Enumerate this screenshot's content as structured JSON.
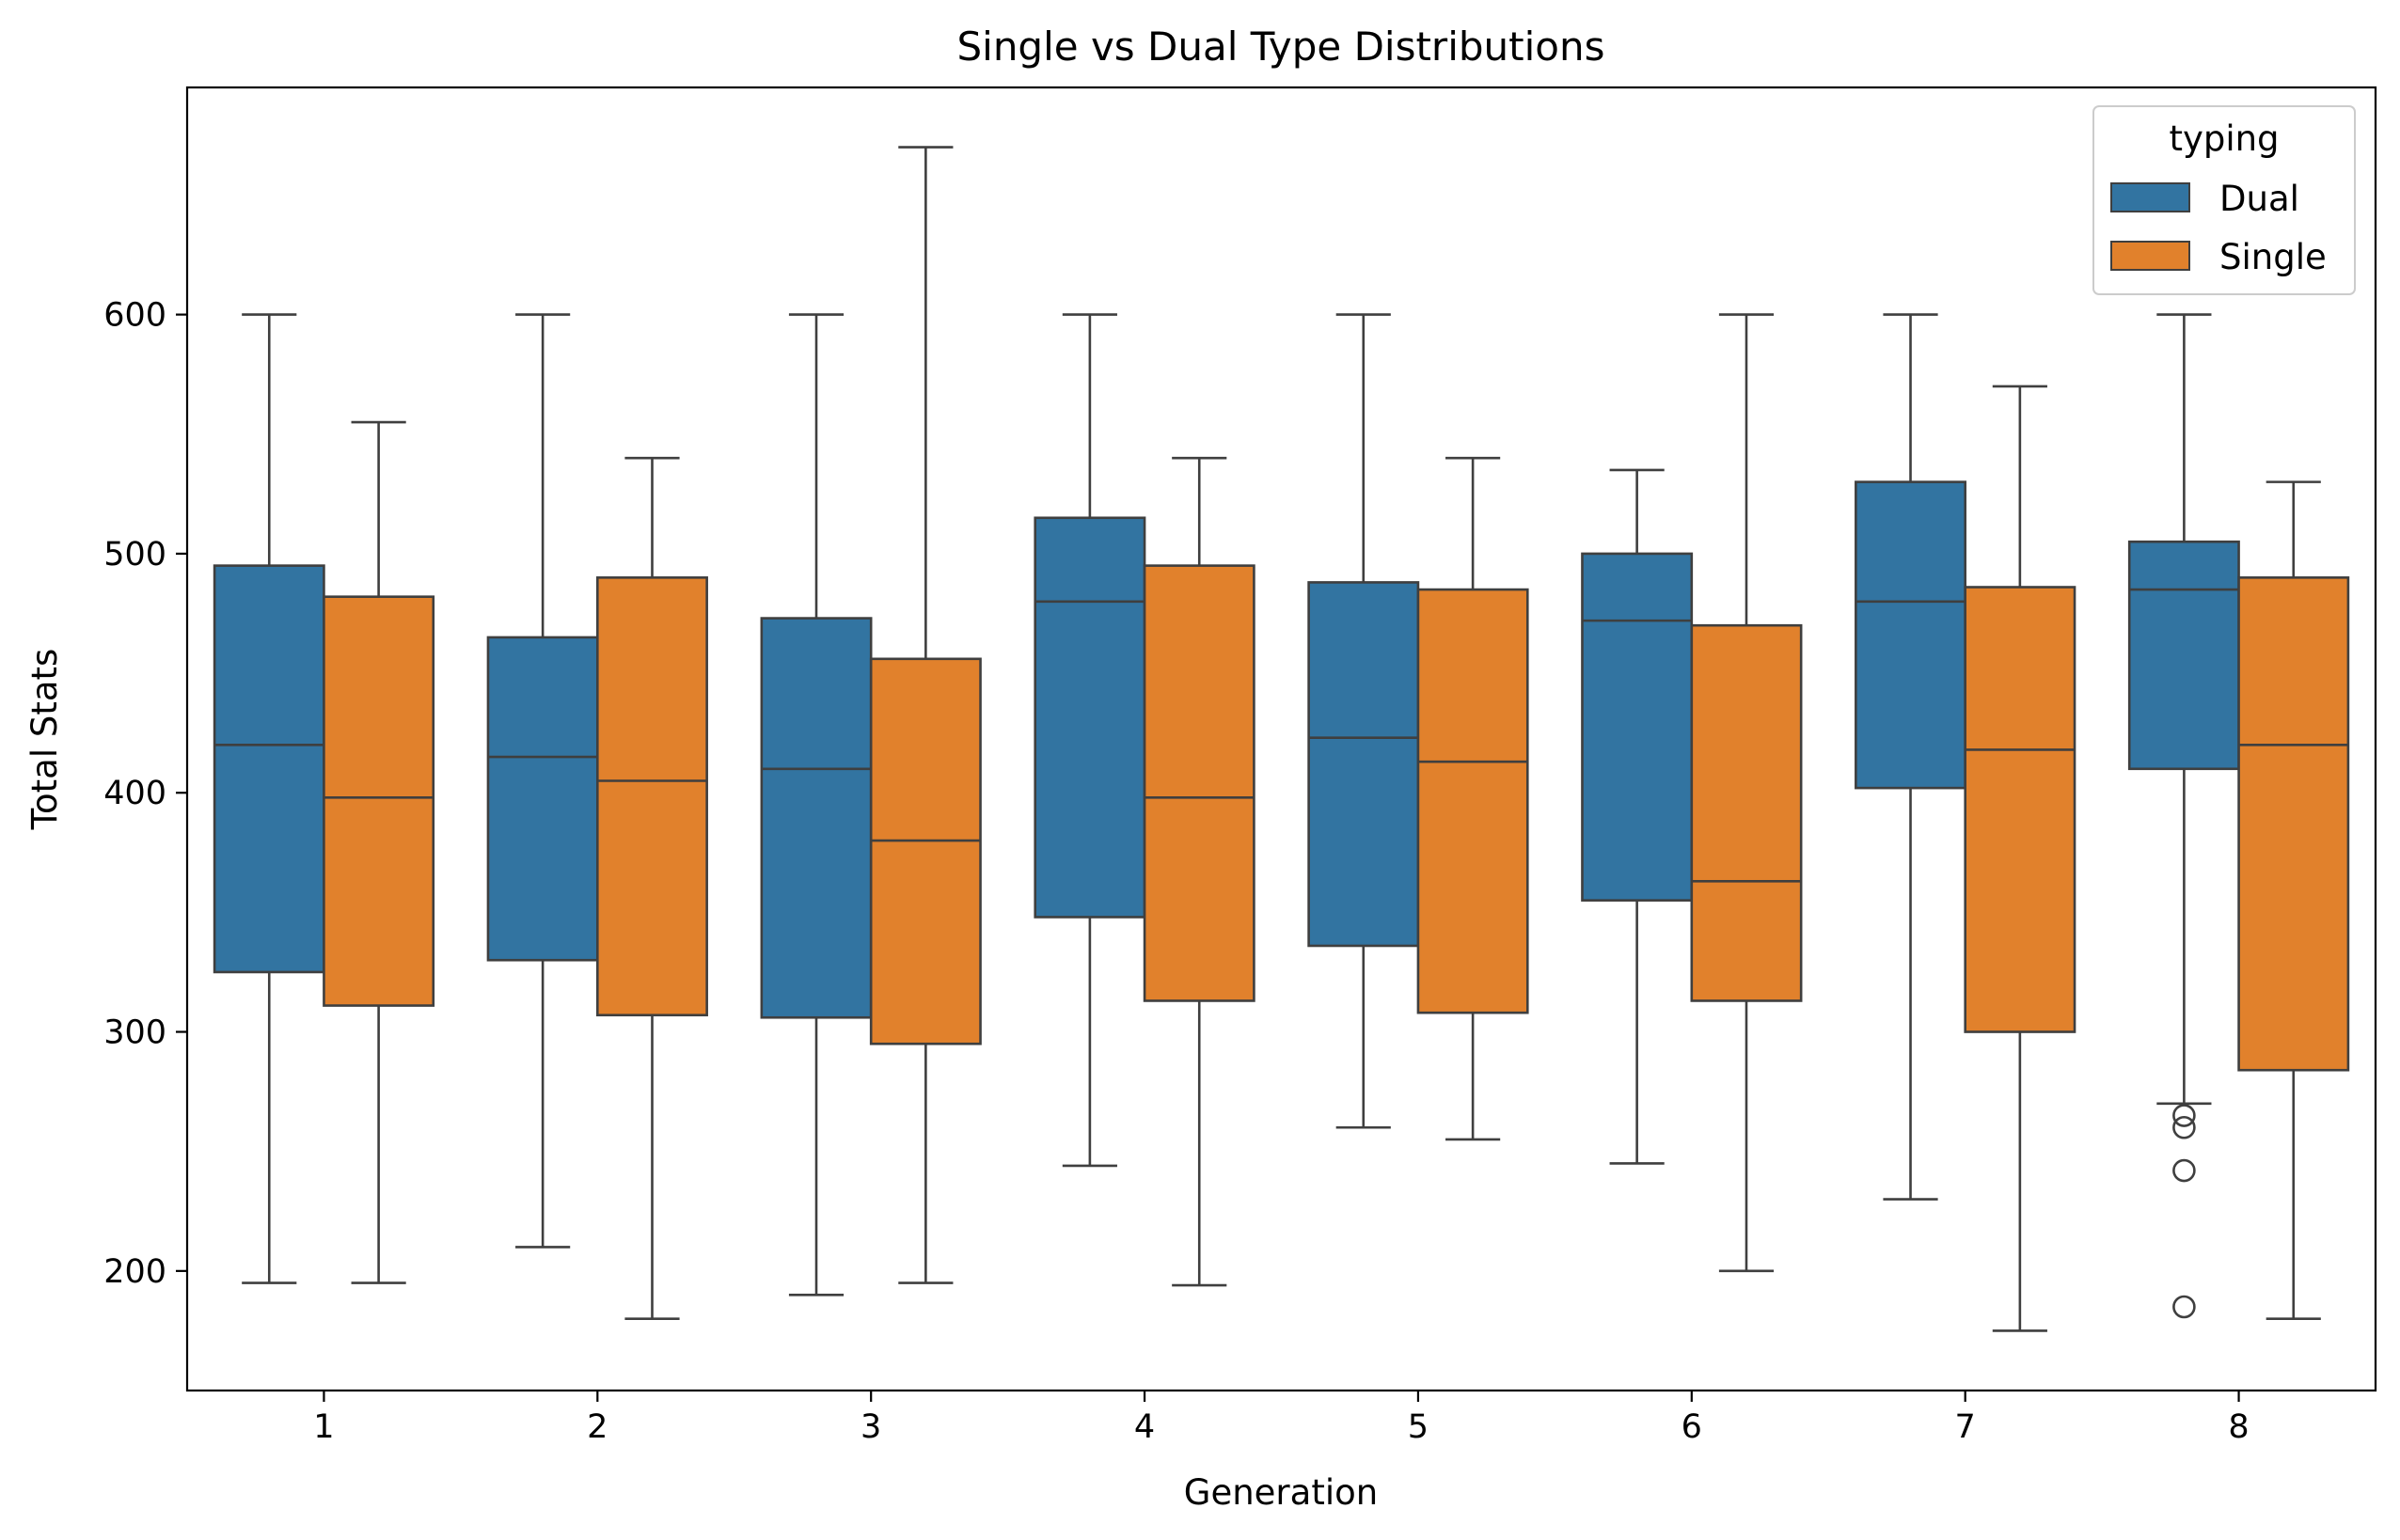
{
  "chart_data": {
    "type": "box",
    "title": "Single vs Dual Type Distributions",
    "xlabel": "Generation",
    "ylabel": "Total Stats",
    "categories": [
      "1",
      "2",
      "3",
      "4",
      "5",
      "6",
      "7",
      "8"
    ],
    "yticks": [
      200,
      300,
      400,
      500,
      600
    ],
    "ylim": [
      150,
      695
    ],
    "grid": false,
    "legend": {
      "title": "typing",
      "position": "top-right"
    },
    "series": [
      {
        "name": "Dual",
        "color": "#3274a1",
        "boxes": [
          {
            "whisker_low": 195,
            "q1": 325,
            "median": 420,
            "q3": 495,
            "whisker_high": 600,
            "outliers": []
          },
          {
            "whisker_low": 210,
            "q1": 330,
            "median": 415,
            "q3": 465,
            "whisker_high": 600,
            "outliers": []
          },
          {
            "whisker_low": 190,
            "q1": 306,
            "median": 410,
            "q3": 473,
            "whisker_high": 600,
            "outliers": []
          },
          {
            "whisker_low": 244,
            "q1": 348,
            "median": 480,
            "q3": 515,
            "whisker_high": 600,
            "outliers": []
          },
          {
            "whisker_low": 260,
            "q1": 336,
            "median": 423,
            "q3": 488,
            "whisker_high": 600,
            "outliers": []
          },
          {
            "whisker_low": 245,
            "q1": 355,
            "median": 472,
            "q3": 500,
            "whisker_high": 535,
            "outliers": []
          },
          {
            "whisker_low": 230,
            "q1": 402,
            "median": 480,
            "q3": 530,
            "whisker_high": 600,
            "outliers": []
          },
          {
            "whisker_low": 270,
            "q1": 410,
            "median": 485,
            "q3": 505,
            "whisker_high": 600,
            "outliers": [
              265,
              260,
              242,
              185
            ]
          }
        ]
      },
      {
        "name": "Single",
        "color": "#e1812c",
        "boxes": [
          {
            "whisker_low": 195,
            "q1": 311,
            "median": 398,
            "q3": 482,
            "whisker_high": 555,
            "outliers": []
          },
          {
            "whisker_low": 180,
            "q1": 307,
            "median": 405,
            "q3": 490,
            "whisker_high": 540,
            "outliers": []
          },
          {
            "whisker_low": 195,
            "q1": 295,
            "median": 380,
            "q3": 456,
            "whisker_high": 670,
            "outliers": []
          },
          {
            "whisker_low": 194,
            "q1": 313,
            "median": 398,
            "q3": 495,
            "whisker_high": 540,
            "outliers": []
          },
          {
            "whisker_low": 255,
            "q1": 308,
            "median": 413,
            "q3": 485,
            "whisker_high": 540,
            "outliers": []
          },
          {
            "whisker_low": 200,
            "q1": 313,
            "median": 363,
            "q3": 470,
            "whisker_high": 600,
            "outliers": []
          },
          {
            "whisker_low": 175,
            "q1": 300,
            "median": 418,
            "q3": 486,
            "whisker_high": 570,
            "outliers": []
          },
          {
            "whisker_low": 180,
            "q1": 284,
            "median": 420,
            "q3": 490,
            "whisker_high": 530,
            "outliers": []
          }
        ]
      }
    ]
  }
}
